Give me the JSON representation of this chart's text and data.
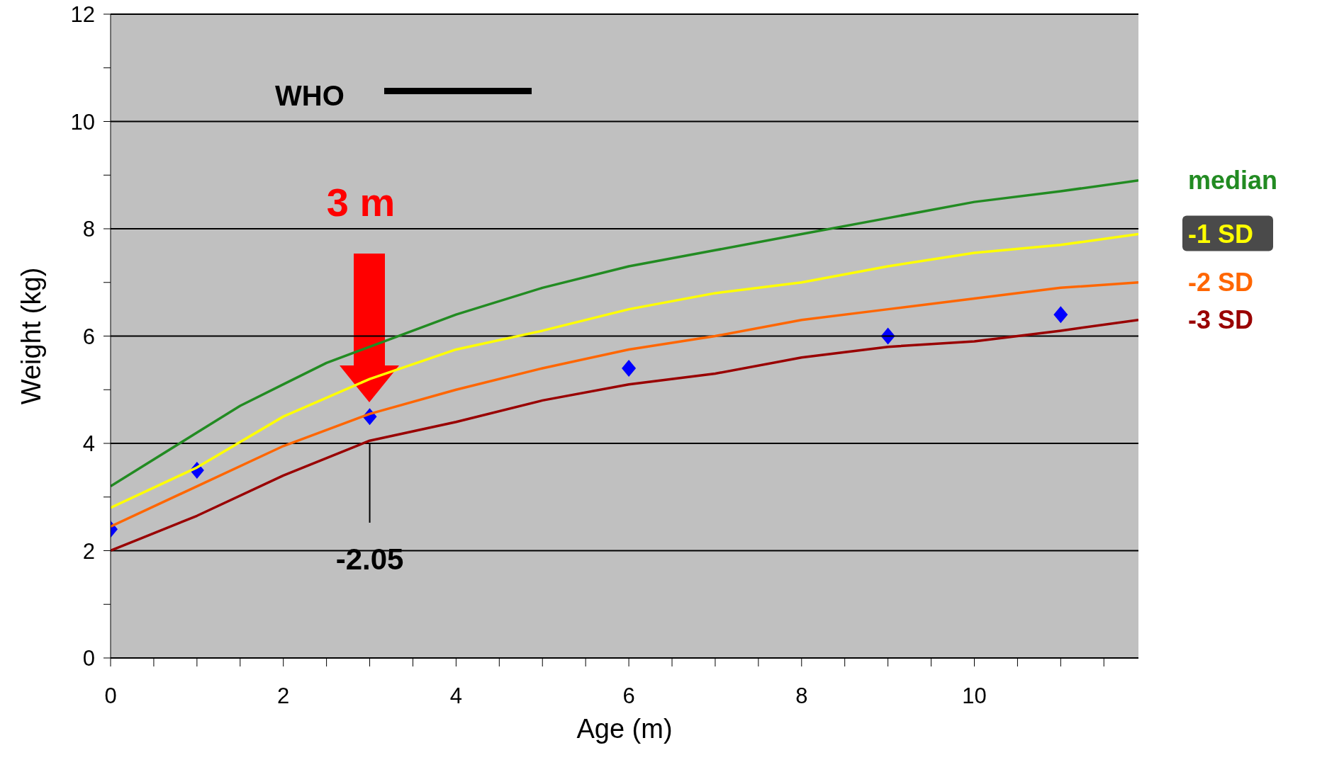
{
  "chart_data": {
    "type": "line",
    "xlabel": "Age (m)",
    "ylabel": "Weight (kg)",
    "xlim": [
      0,
      11.9
    ],
    "xticks": [
      0,
      {
        "value": 0.5,
        "label": null
      },
      {
        "value": 1,
        "label": null
      },
      {
        "value": 1.5,
        "label": null
      },
      2,
      {
        "value": 2.5,
        "label": null
      },
      {
        "value": 3,
        "label": null
      },
      {
        "value": 3.5,
        "label": null
      },
      4,
      {
        "value": 4.5,
        "label": null
      },
      {
        "value": 5,
        "label": null
      },
      {
        "value": 5.5,
        "label": null
      },
      6,
      {
        "value": 6.5,
        "label": null
      },
      {
        "value": 7,
        "label": null
      },
      {
        "value": 7.5,
        "label": null
      },
      8,
      {
        "value": 8.5,
        "label": null
      },
      {
        "value": 9,
        "label": null
      },
      {
        "value": 9.5,
        "label": null
      },
      10,
      {
        "value": 10.5,
        "label": null
      },
      {
        "value": 11,
        "label": null
      },
      {
        "value": 11.5,
        "label": null
      }
    ],
    "ylim": [
      0,
      12
    ],
    "yticks": [
      0,
      {
        "value": 1,
        "label": null
      },
      2,
      {
        "value": 3,
        "label": null
      },
      4,
      {
        "value": 5,
        "label": null
      },
      6,
      {
        "value": 7,
        "label": null
      },
      8,
      {
        "value": 9,
        "label": null
      },
      10,
      {
        "value": 11,
        "label": null
      },
      12
    ],
    "grid": "y",
    "legend": "right",
    "marker": "none",
    "line_style": "solid",
    "series": [
      {
        "name": "median",
        "color": "#228b22",
        "x": [
          0,
          1,
          1.5,
          2,
          2.5,
          3,
          3.5,
          4,
          5,
          6,
          7,
          8,
          9,
          10,
          11,
          11.9
        ],
        "values": [
          3.2,
          4.2,
          4.7,
          5.1,
          5.5,
          5.8,
          6.1,
          6.4,
          6.9,
          7.3,
          7.6,
          7.9,
          8.2,
          8.5,
          8.7,
          8.9
        ]
      },
      {
        "name": "-1 SD",
        "color": "#ffff00",
        "x": [
          0,
          1,
          2,
          3,
          4,
          5,
          6,
          7,
          8,
          9,
          10,
          11,
          11.9
        ],
        "values": [
          2.8,
          3.55,
          4.5,
          5.2,
          5.75,
          6.1,
          6.5,
          6.8,
          7.0,
          7.3,
          7.55,
          7.7,
          7.9
        ]
      },
      {
        "name": "-2 SD",
        "color": "#ff6600",
        "x": [
          0,
          1,
          2,
          3,
          4,
          5,
          6,
          7,
          8,
          9,
          10,
          11,
          11.9
        ],
        "values": [
          2.45,
          3.2,
          3.95,
          4.55,
          5.0,
          5.4,
          5.75,
          6.0,
          6.3,
          6.5,
          6.7,
          6.9,
          7.0
        ]
      },
      {
        "name": "-3 SD",
        "color": "#990000",
        "x": [
          0,
          1,
          2,
          3,
          4,
          5,
          6,
          7,
          8,
          9,
          10,
          11,
          11.9
        ],
        "values": [
          2.0,
          2.65,
          3.4,
          4.05,
          4.4,
          4.8,
          5.1,
          5.3,
          5.6,
          5.8,
          5.9,
          6.1,
          6.3
        ]
      },
      {
        "type": "scatter",
        "marker": "diamond",
        "color": "#0000ff",
        "x": [
          0,
          1,
          3,
          6,
          9,
          11
        ],
        "values": [
          2.4,
          3.5,
          4.5,
          5.4,
          6.0,
          6.4
        ]
      }
    ],
    "annotations": [
      "WHO",
      "3 m",
      {
        "text": "-2.05",
        "x": 3,
        "y": 4.0
      }
    ]
  }
}
